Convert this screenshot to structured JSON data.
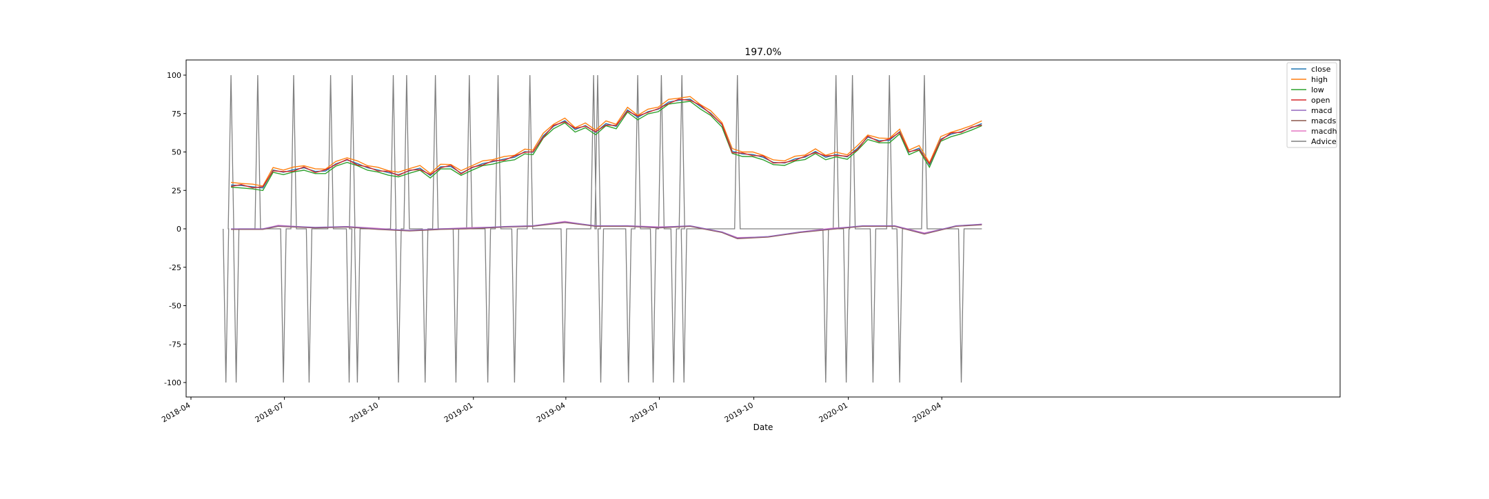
{
  "chart_data": {
    "type": "line",
    "title": "197.0%",
    "xlabel": "Date",
    "ylabel": "",
    "x_range": [
      "2018-04-01",
      "2020-05-01"
    ],
    "ylim": [
      -110,
      110
    ],
    "x_ticks": [
      "2018-04",
      "2018-07",
      "2018-10",
      "2019-01",
      "2019-04",
      "2019-07",
      "2019-10",
      "2020-01",
      "2020-04"
    ],
    "y_ticks": [
      100,
      75,
      50,
      25,
      0,
      -25,
      -50,
      -75,
      -100
    ],
    "grid": false,
    "legend_position": "upper right",
    "series": [
      {
        "name": "close",
        "color": "#1f77b4"
      },
      {
        "name": "high",
        "color": "#ff7f0e"
      },
      {
        "name": "low",
        "color": "#2ca02c"
      },
      {
        "name": "open",
        "color": "#d62728"
      },
      {
        "name": "macd",
        "color": "#9467bd"
      },
      {
        "name": "macds",
        "color": "#8c564b"
      },
      {
        "name": "macdh",
        "color": "#e377c2"
      },
      {
        "name": "Advice",
        "color": "#7f7f7f"
      }
    ],
    "price_close": [
      [
        "2018-05-10",
        28
      ],
      [
        "2018-05-20",
        28.5
      ],
      [
        "2018-05-31",
        27
      ],
      [
        "2018-06-10",
        27
      ],
      [
        "2018-06-20",
        38
      ],
      [
        "2018-06-30",
        37
      ],
      [
        "2018-07-10",
        38
      ],
      [
        "2018-07-20",
        40
      ],
      [
        "2018-07-31",
        37
      ],
      [
        "2018-08-10",
        38
      ],
      [
        "2018-08-20",
        42
      ],
      [
        "2018-08-31",
        45
      ],
      [
        "2018-09-10",
        42
      ],
      [
        "2018-09-20",
        40
      ],
      [
        "2018-09-30",
        38
      ],
      [
        "2018-10-10",
        37
      ],
      [
        "2018-10-20",
        35
      ],
      [
        "2018-10-31",
        38
      ],
      [
        "2018-11-10",
        39
      ],
      [
        "2018-11-20",
        35
      ],
      [
        "2018-11-30",
        40
      ],
      [
        "2018-12-10",
        41
      ],
      [
        "2018-12-20",
        36
      ],
      [
        "2018-12-31",
        40
      ],
      [
        "2019-01-10",
        42
      ],
      [
        "2019-01-20",
        44
      ],
      [
        "2019-01-31",
        45
      ],
      [
        "2019-02-10",
        47
      ],
      [
        "2019-02-20",
        50
      ],
      [
        "2019-02-28",
        50
      ],
      [
        "2019-03-10",
        60
      ],
      [
        "2019-03-20",
        67
      ],
      [
        "2019-03-31",
        70
      ],
      [
        "2019-04-10",
        65
      ],
      [
        "2019-04-20",
        67
      ],
      [
        "2019-04-30",
        63
      ],
      [
        "2019-05-10",
        68
      ],
      [
        "2019-05-20",
        67
      ],
      [
        "2019-05-31",
        77
      ],
      [
        "2019-06-10",
        73
      ],
      [
        "2019-06-20",
        76
      ],
      [
        "2019-06-30",
        78
      ],
      [
        "2019-07-10",
        82
      ],
      [
        "2019-07-20",
        84
      ],
      [
        "2019-07-31",
        84
      ],
      [
        "2019-08-10",
        80
      ],
      [
        "2019-08-20",
        75
      ],
      [
        "2019-08-31",
        68
      ],
      [
        "2019-09-10",
        50
      ],
      [
        "2019-09-20",
        49
      ],
      [
        "2019-09-30",
        48
      ],
      [
        "2019-10-10",
        47
      ],
      [
        "2019-10-20",
        43
      ],
      [
        "2019-10-31",
        43
      ],
      [
        "2019-11-10",
        45
      ],
      [
        "2019-11-20",
        47
      ],
      [
        "2019-11-30",
        50
      ],
      [
        "2019-12-10",
        47
      ],
      [
        "2019-12-20",
        48
      ],
      [
        "2019-12-31",
        47
      ],
      [
        "2020-01-10",
        52
      ],
      [
        "2020-01-20",
        60
      ],
      [
        "2020-01-31",
        57
      ],
      [
        "2020-02-10",
        58
      ],
      [
        "2020-02-20",
        63
      ],
      [
        "2020-02-29",
        50
      ],
      [
        "2020-03-10",
        52
      ],
      [
        "2020-03-20",
        42
      ],
      [
        "2020-03-31",
        58
      ],
      [
        "2020-04-10",
        62
      ],
      [
        "2020-04-20",
        63
      ],
      [
        "2020-04-30",
        66
      ],
      [
        "2020-05-10",
        68
      ]
    ],
    "macd_line": [
      [
        "2018-05-10",
        0
      ],
      [
        "2018-06-10",
        0
      ],
      [
        "2018-06-25",
        2
      ],
      [
        "2018-07-31",
        1
      ],
      [
        "2018-08-31",
        1.5
      ],
      [
        "2018-09-30",
        0
      ],
      [
        "2018-10-31",
        -1
      ],
      [
        "2018-11-30",
        0
      ],
      [
        "2018-12-31",
        0.5
      ],
      [
        "2019-01-31",
        1.5
      ],
      [
        "2019-02-28",
        2
      ],
      [
        "2019-03-31",
        4.5
      ],
      [
        "2019-04-30",
        2
      ],
      [
        "2019-05-31",
        2
      ],
      [
        "2019-06-30",
        1
      ],
      [
        "2019-07-31",
        2
      ],
      [
        "2019-08-31",
        -2
      ],
      [
        "2019-09-15",
        -6
      ],
      [
        "2019-10-15",
        -5
      ],
      [
        "2019-11-15",
        -2
      ],
      [
        "2019-12-15",
        0
      ],
      [
        "2020-01-15",
        2
      ],
      [
        "2020-02-15",
        2
      ],
      [
        "2020-03-15",
        -3
      ],
      [
        "2020-04-15",
        2
      ],
      [
        "2020-05-10",
        3
      ]
    ],
    "advice_spikes": [
      [
        "2018-05-10",
        100
      ],
      [
        "2018-06-05",
        100
      ],
      [
        "2018-07-10",
        100
      ],
      [
        "2018-08-15",
        100
      ],
      [
        "2018-09-05",
        100
      ],
      [
        "2018-10-15",
        100
      ],
      [
        "2018-10-28",
        100
      ],
      [
        "2018-11-25",
        100
      ],
      [
        "2018-12-28",
        100
      ],
      [
        "2019-01-25",
        100
      ],
      [
        "2019-02-25",
        100
      ],
      [
        "2019-04-28",
        100
      ],
      [
        "2019-05-02",
        100
      ],
      [
        "2019-06-10",
        100
      ],
      [
        "2019-07-03",
        100
      ],
      [
        "2019-07-23",
        100
      ],
      [
        "2019-09-15",
        100
      ],
      [
        "2019-12-20",
        100
      ],
      [
        "2020-01-05",
        100
      ],
      [
        "2020-02-10",
        100
      ],
      [
        "2020-03-15",
        100
      ],
      [
        "2018-05-05",
        -100
      ],
      [
        "2018-05-15",
        -100
      ],
      [
        "2018-06-30",
        -100
      ],
      [
        "2018-07-25",
        -100
      ],
      [
        "2018-09-02",
        -100
      ],
      [
        "2018-09-10",
        -100
      ],
      [
        "2018-10-20",
        -100
      ],
      [
        "2018-11-15",
        -100
      ],
      [
        "2018-12-15",
        -100
      ],
      [
        "2019-01-15",
        -100
      ],
      [
        "2019-02-10",
        -100
      ],
      [
        "2019-03-30",
        -100
      ],
      [
        "2019-05-05",
        -100
      ],
      [
        "2019-06-01",
        -100
      ],
      [
        "2019-06-25",
        -100
      ],
      [
        "2019-07-15",
        -100
      ],
      [
        "2019-07-25",
        -100
      ],
      [
        "2019-12-10",
        -100
      ],
      [
        "2019-12-30",
        -100
      ],
      [
        "2020-01-25",
        -100
      ],
      [
        "2020-02-20",
        -100
      ],
      [
        "2020-04-20",
        -100
      ]
    ]
  }
}
